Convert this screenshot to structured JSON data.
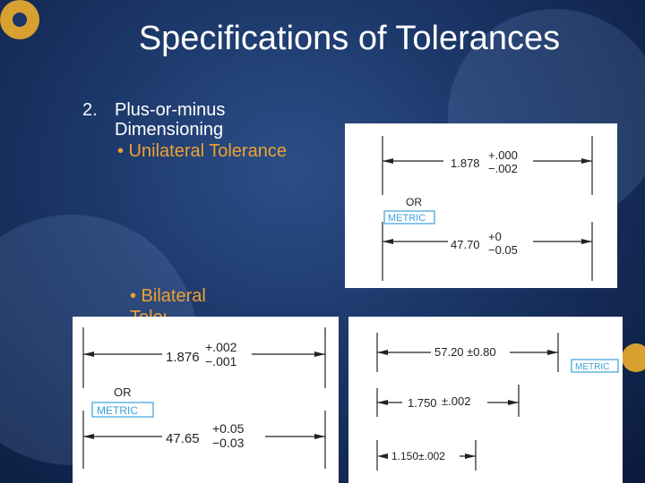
{
  "slide": {
    "title": "Specifications of Tolerances",
    "item_number": "2.",
    "item_text": "Plus-or-minus Dimensioning",
    "bullet_unilateral": "• Unilateral Tolerance",
    "bullet_bilateral": "• Bilateral",
    "bullet_bilateral_cut": "Tolerance"
  },
  "unilateral_figure": {
    "inch_value": "1.878",
    "inch_upper": "+.000",
    "inch_lower": "−.002",
    "or_label": "OR",
    "metric_label": "METRIC",
    "metric_value": "47.70",
    "metric_upper": "+0",
    "metric_lower": "−0.05"
  },
  "bilateral_figure": {
    "inch_value": "1.876",
    "inch_upper": "+.002",
    "inch_lower": "−.001",
    "or_label": "OR",
    "metric_label": "METRIC",
    "metric_value": "47.65",
    "metric_upper": "+0.05",
    "metric_lower": "−0.03"
  },
  "equal_bilateral_figure": {
    "dim1": "57.20 ±0.80",
    "metric_label": "METRIC",
    "dim2_value": "1.750",
    "dim2_tol": "±.002",
    "dim3": "1.150±.002"
  },
  "colors": {
    "background": "#1a3566",
    "title_text": "#ffffff",
    "bullet_text": "#f0a030",
    "metric_box": "#3aa0d8"
  }
}
